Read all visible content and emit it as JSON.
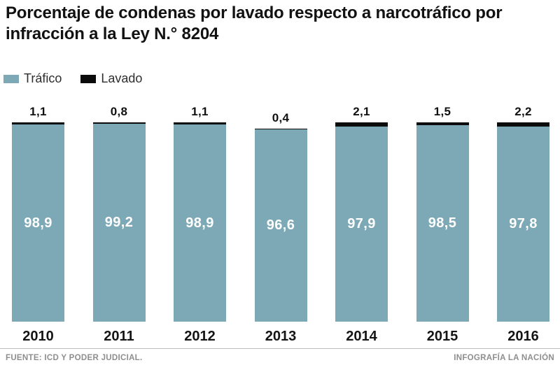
{
  "title": "Porcentaje de condenas por lavado respecto a narcotráfico por infracción a la Ley N.° 8204",
  "legend": {
    "trafico_label": "Tráfico",
    "lavado_label": "Lavado"
  },
  "colors": {
    "trafico": "#7da9b6",
    "lavado": "#0b0b0b"
  },
  "chart_data": {
    "type": "bar",
    "stacked": true,
    "title": "Porcentaje de condenas por lavado respecto a narcotráfico por infracción a la Ley N.° 8204",
    "categories": [
      "2010",
      "2011",
      "2012",
      "2013",
      "2014",
      "2015",
      "2016"
    ],
    "series": [
      {
        "name": "Tráfico",
        "color": "#7da9b6",
        "values": [
          98.9,
          99.2,
          98.9,
          96.6,
          97.9,
          98.5,
          97.8
        ],
        "labels": [
          "98,9",
          "99,2",
          "98,9",
          "96,6",
          "97,9",
          "98,5",
          "97,8"
        ]
      },
      {
        "name": "Lavado",
        "color": "#0b0b0b",
        "values": [
          1.1,
          0.8,
          1.1,
          0.4,
          2.1,
          1.5,
          2.2
        ],
        "labels": [
          "1,1",
          "0,8",
          "1,1",
          "0,4",
          "2,1",
          "1,5",
          "2,2"
        ]
      }
    ],
    "ylim": [
      0,
      100
    ],
    "unit": "percent",
    "value_format": "decimal-comma",
    "legend_position": "top-left",
    "grid": false,
    "value_labels": {
      "lavado": "above-bar",
      "trafico": "inside-bar-white"
    }
  },
  "footer": {
    "source": "FUENTE: ICD Y PODER JUDICIAL.",
    "credit": "INFOGRAFÍA LA NACIÓN"
  }
}
